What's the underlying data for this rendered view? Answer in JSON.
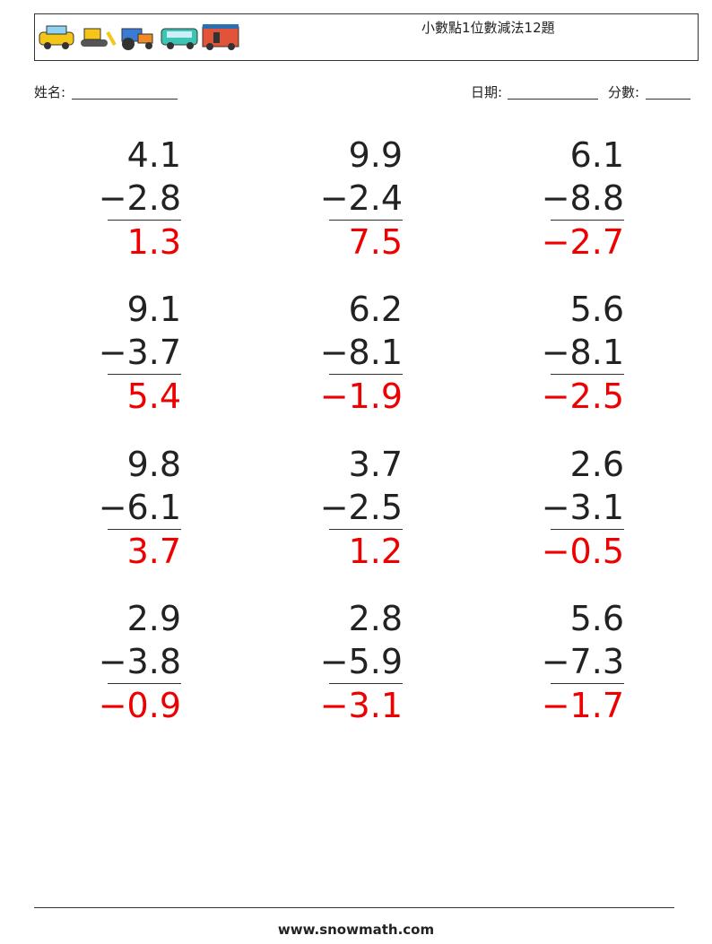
{
  "header": {
    "title": "小數點1位數減法12題"
  },
  "fields": {
    "name": "姓名:",
    "date": "日期:",
    "score": "分數:"
  },
  "problems": [
    {
      "top": "4.1",
      "bottom": "−2.8",
      "answer": "1.3"
    },
    {
      "top": "9.9",
      "bottom": "−2.4",
      "answer": "7.5"
    },
    {
      "top": "6.1",
      "bottom": "−8.8",
      "answer": "−2.7"
    },
    {
      "top": "9.1",
      "bottom": "−3.7",
      "answer": "5.4"
    },
    {
      "top": "6.2",
      "bottom": "−8.1",
      "answer": "−1.9"
    },
    {
      "top": "5.6",
      "bottom": "−8.1",
      "answer": "−2.5"
    },
    {
      "top": "9.8",
      "bottom": "−6.1",
      "answer": "3.7"
    },
    {
      "top": "3.7",
      "bottom": "−2.5",
      "answer": "1.2"
    },
    {
      "top": "2.6",
      "bottom": "−3.1",
      "answer": "−0.5"
    },
    {
      "top": "2.9",
      "bottom": "−3.8",
      "answer": "−0.9"
    },
    {
      "top": "2.8",
      "bottom": "−5.9",
      "answer": "−3.1"
    },
    {
      "top": "5.6",
      "bottom": "−7.3",
      "answer": "−1.7"
    }
  ],
  "footer": {
    "url": "www.snowmath.com"
  }
}
